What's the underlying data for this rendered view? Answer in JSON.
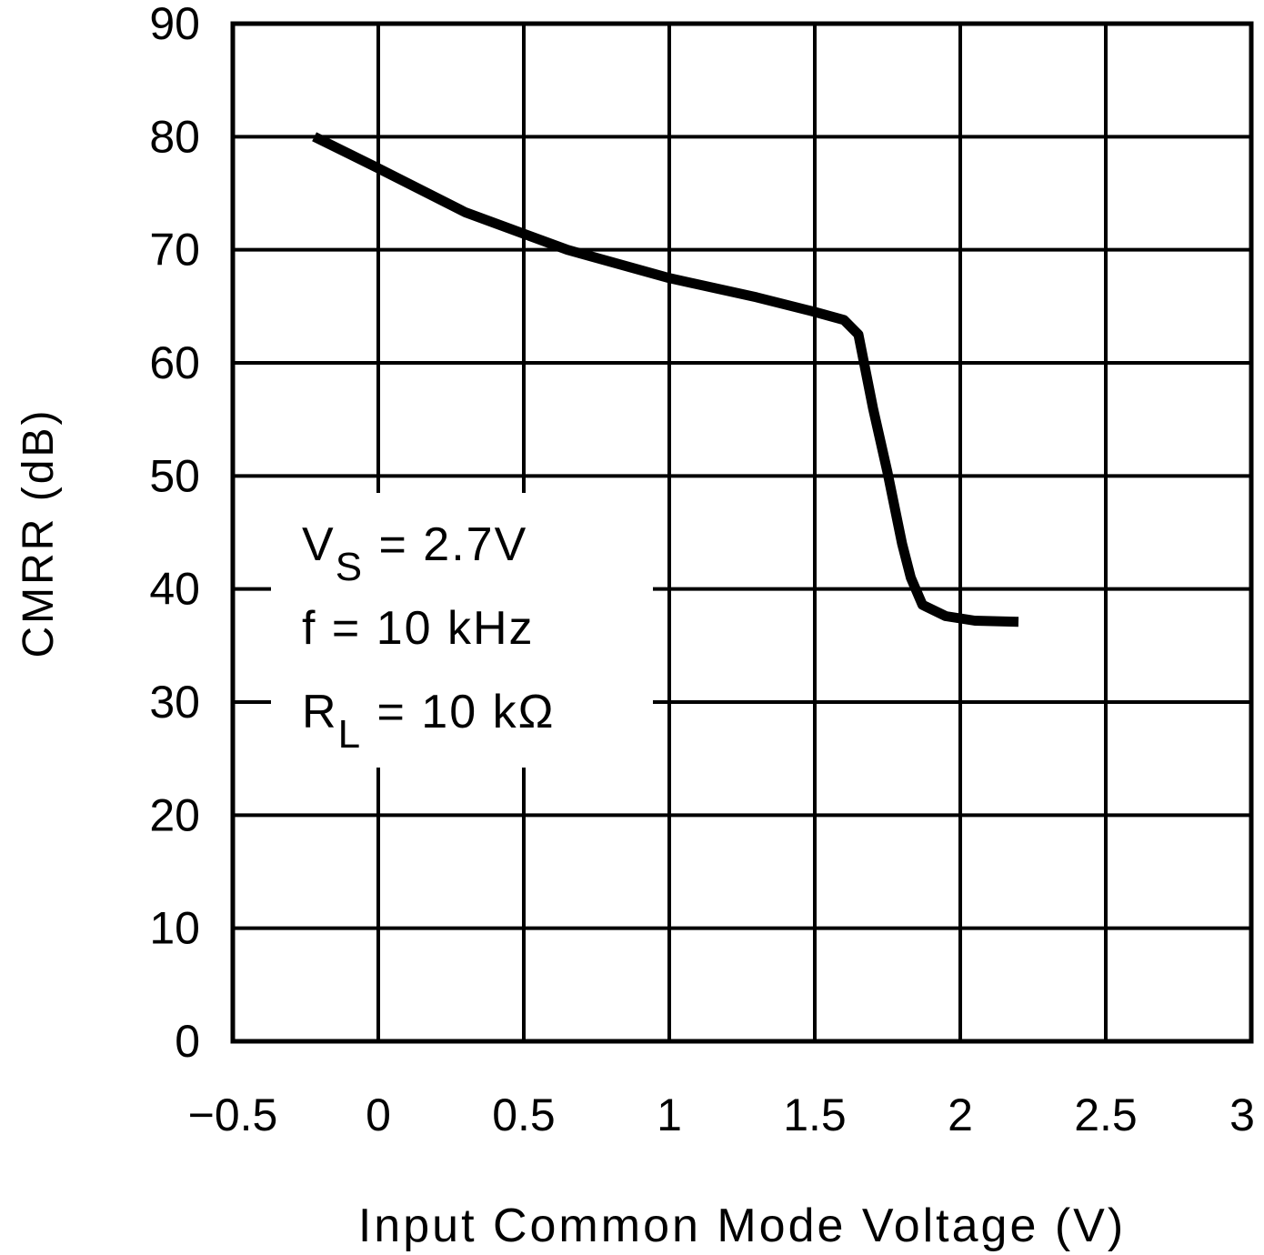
{
  "chart_data": {
    "type": "line",
    "title": "",
    "xlabel": "Input Common Mode Voltage (V)",
    "ylabel": "CMRR (dB)",
    "xlim": [
      -0.5,
      3
    ],
    "ylim": [
      0,
      90
    ],
    "xticks": [
      -0.5,
      0,
      0.5,
      1,
      1.5,
      2,
      2.5,
      3
    ],
    "xtick_labels": [
      "−0.5",
      "0",
      "0.5",
      "1",
      "1.5",
      "2",
      "2.5",
      "3"
    ],
    "yticks": [
      0,
      10,
      20,
      30,
      40,
      50,
      60,
      70,
      80,
      90
    ],
    "ytick_labels": [
      "0",
      "10",
      "20",
      "30",
      "40",
      "50",
      "60",
      "70",
      "80",
      "90"
    ],
    "grid": true,
    "line_color": "#000000",
    "series": [
      {
        "x": [
          -0.22,
          0.0,
          0.3,
          0.65,
          1.0,
          1.3,
          1.5,
          1.6,
          1.65,
          1.7,
          1.75,
          1.8,
          1.83,
          1.87,
          1.95,
          2.05,
          2.2
        ],
        "y": [
          80,
          77.2,
          73.3,
          70,
          67.5,
          65.8,
          64.5,
          63.8,
          62.5,
          56,
          50.3,
          44,
          41,
          38.6,
          37.6,
          37.2,
          37.1
        ]
      }
    ],
    "annotations": [
      {
        "main": "V",
        "sub": "S",
        "rest": "  =  2.7V"
      },
      {
        "main": "f  =  10 kHz",
        "sub": "",
        "rest": ""
      },
      {
        "main": "R",
        "sub": "L",
        "rest": "  =  10 kΩ"
      }
    ]
  }
}
